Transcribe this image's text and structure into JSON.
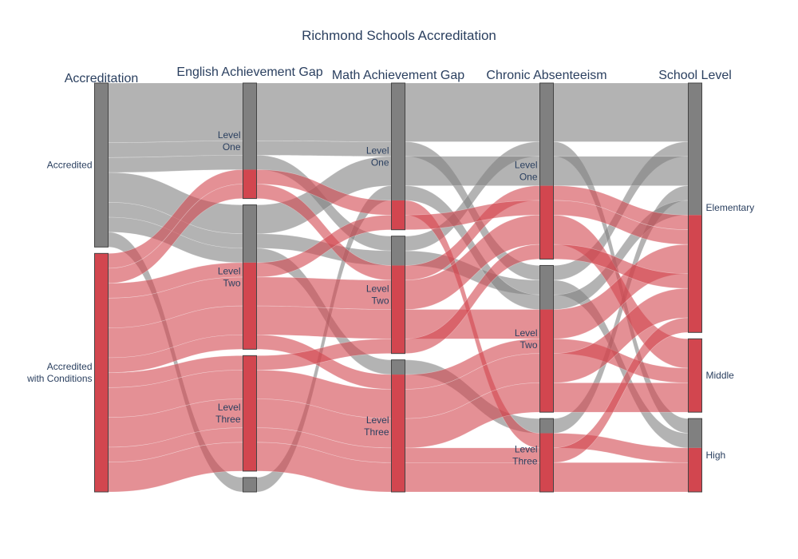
{
  "chart_data": {
    "type": "parallel-categories",
    "title": "Richmond Schools Accreditation",
    "colors": {
      "accredited": "#808080",
      "conditions": "#d2464f"
    },
    "dimensions": [
      {
        "name": "Accreditation",
        "categories": [
          {
            "label": "Accredited",
            "lines": [
              "Accredited"
            ]
          },
          {
            "label": "Accredited with Conditions",
            "lines": [
              "Accredited",
              "with Conditions"
            ]
          }
        ]
      },
      {
        "name": "English Achievement Gap",
        "categories": [
          {
            "label": "Level One",
            "lines": [
              "Level",
              "One"
            ]
          },
          {
            "label": "Level Two",
            "lines": [
              "Level",
              "Two"
            ]
          },
          {
            "label": "Level Three",
            "lines": [
              "Level",
              "Three"
            ]
          },
          {
            "label": "",
            "lines": []
          }
        ]
      },
      {
        "name": "Math Achievement Gap",
        "categories": [
          {
            "label": "Level One",
            "lines": [
              "Level",
              "One"
            ]
          },
          {
            "label": "Level Two",
            "lines": [
              "Level",
              "Two"
            ]
          },
          {
            "label": "Level Three",
            "lines": [
              "Level",
              "Three"
            ]
          }
        ]
      },
      {
        "name": "Chronic Absenteeism",
        "categories": [
          {
            "label": "Level One",
            "lines": [
              "Level",
              "One"
            ]
          },
          {
            "label": "Level Two",
            "lines": [
              "Level",
              "Two"
            ]
          },
          {
            "label": "Level Three",
            "lines": [
              "Level",
              "Three"
            ]
          }
        ]
      },
      {
        "name": "School Level",
        "categories": [
          {
            "label": "Elementary",
            "lines": [
              "Elementary"
            ]
          },
          {
            "label": "Middle",
            "lines": [
              "Middle"
            ]
          },
          {
            "label": "High",
            "lines": [
              "High"
            ]
          }
        ]
      }
    ],
    "flows": [
      {
        "color": "accredited",
        "path": [
          0,
          0,
          0,
          0,
          0
        ],
        "count": 4
      },
      {
        "color": "accredited",
        "path": [
          0,
          0,
          0,
          1,
          0
        ],
        "count": 1
      },
      {
        "color": "accredited",
        "path": [
          0,
          0,
          1,
          0,
          2
        ],
        "count": 1
      },
      {
        "color": "accredited",
        "path": [
          0,
          1,
          0,
          0,
          0
        ],
        "count": 2
      },
      {
        "color": "accredited",
        "path": [
          0,
          1,
          1,
          1,
          2
        ],
        "count": 1
      },
      {
        "color": "accredited",
        "path": [
          0,
          1,
          2,
          2,
          0
        ],
        "count": 1
      },
      {
        "color": "accredited",
        "path": [
          0,
          3,
          0,
          1,
          0
        ],
        "count": 1
      },
      {
        "color": "conditions",
        "path": [
          1,
          0,
          0,
          2,
          2
        ],
        "count": 1
      },
      {
        "color": "conditions",
        "path": [
          1,
          0,
          1,
          0,
          0
        ],
        "count": 1
      },
      {
        "color": "conditions",
        "path": [
          1,
          1,
          0,
          0,
          0
        ],
        "count": 1
      },
      {
        "color": "conditions",
        "path": [
          1,
          1,
          1,
          0,
          1
        ],
        "count": 2
      },
      {
        "color": "conditions",
        "path": [
          1,
          1,
          1,
          1,
          0
        ],
        "count": 2
      },
      {
        "color": "conditions",
        "path": [
          1,
          1,
          2,
          1,
          1
        ],
        "count": 1
      },
      {
        "color": "conditions",
        "path": [
          1,
          2,
          1,
          0,
          0
        ],
        "count": 1
      },
      {
        "color": "conditions",
        "path": [
          1,
          2,
          2,
          1,
          0
        ],
        "count": 2
      },
      {
        "color": "conditions",
        "path": [
          1,
          2,
          2,
          1,
          1
        ],
        "count": 2
      },
      {
        "color": "conditions",
        "path": [
          1,
          2,
          2,
          2,
          2
        ],
        "count": 2
      },
      {
        "color": "conditions",
        "path": [
          1,
          2,
          2,
          2,
          0
        ],
        "count": 1
      }
    ]
  }
}
